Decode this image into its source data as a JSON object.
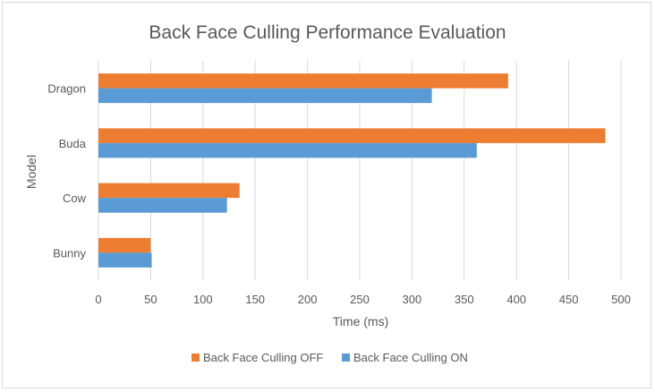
{
  "chart_data": {
    "type": "bar",
    "orientation": "horizontal",
    "title": "Back Face Culling Performance Evaluation",
    "xlabel": "Time (ms)",
    "ylabel": "Model",
    "categories": [
      "Bunny",
      "Cow",
      "Buda",
      "Dragon"
    ],
    "series": [
      {
        "name": "Back Face Culling ON",
        "color": "#5b9bd5",
        "values": [
          51,
          123,
          362,
          319
        ]
      },
      {
        "name": "Back Face Culling OFF",
        "color": "#ed7d31",
        "values": [
          50,
          135,
          485,
          392
        ]
      }
    ],
    "xlim": [
      0,
      500
    ],
    "xticks": [
      "0",
      "50",
      "100",
      "150",
      "200",
      "250",
      "300",
      "350",
      "400",
      "450",
      "500"
    ],
    "grid": "vertical",
    "legend_position": "bottom",
    "legend_order": [
      "Back Face Culling OFF",
      "Back Face Culling ON"
    ]
  }
}
